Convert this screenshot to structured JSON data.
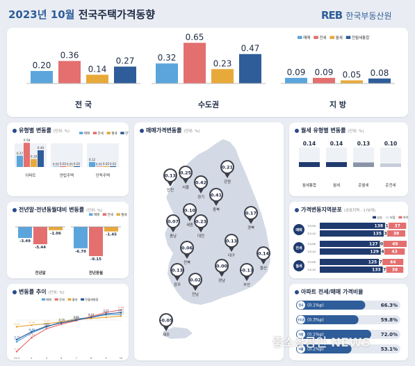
{
  "header": {
    "title_year": "2023년 10월",
    "title_main": "전국주택가격동향",
    "logo_mark": "REB",
    "logo_text": "한국부동산원"
  },
  "colors": {
    "sale": "#5ba5dc",
    "jeonse": "#e46f6f",
    "monthly": "#e8a93b",
    "combined": "#2f5d99",
    "navy": "#1f3a6e"
  },
  "chart_data": [
    {
      "type": "bar",
      "id": "top-regions",
      "legend": [
        "매매",
        "전세",
        "월세",
        "전월세통합"
      ],
      "categories": [
        "전 국",
        "수도권",
        "지 방"
      ],
      "series": [
        {
          "name": "매매",
          "values": [
            0.2,
            0.32,
            0.09
          ]
        },
        {
          "name": "전세",
          "values": [
            0.36,
            0.65,
            0.09
          ]
        },
        {
          "name": "월세",
          "values": [
            0.14,
            0.23,
            0.05
          ]
        },
        {
          "name": "전월세통합",
          "values": [
            0.27,
            0.47,
            0.08
          ]
        }
      ]
    },
    {
      "type": "bar",
      "id": "by-type",
      "title": "유형별 변동률",
      "unit": "(단위: %)",
      "legend": [
        "매매",
        "전세",
        "월세",
        "전월세통합"
      ],
      "categories": [
        "아파트",
        "연립주택",
        "단독주택"
      ],
      "series": [
        {
          "name": "매매",
          "values": [
            0.27,
            0.01,
            0.12
          ]
        },
        {
          "name": "전세",
          "values": [
            0.58,
            0.02,
            0.01
          ]
        },
        {
          "name": "월세",
          "values": [
            0.19,
            0.01,
            0.02
          ]
        },
        {
          "name": "전월세통합",
          "values": [
            0.4,
            0.02,
            0.02
          ]
        }
      ]
    },
    {
      "type": "bar",
      "id": "cumulative",
      "title": "전년말·전년동월대비 변동률",
      "unit": "(단위: %)",
      "legend": [
        "매매",
        "전세",
        "월세"
      ],
      "categories": [
        "전년말",
        "전년동월"
      ],
      "series": [
        {
          "name": "매매",
          "values": [
            -3.49,
            -6.7
          ]
        },
        {
          "name": "전세",
          "values": [
            -5.44,
            -9.15
          ]
        },
        {
          "name": "월세",
          "values": [
            -1.06,
            -1.45
          ]
        }
      ]
    },
    {
      "type": "line",
      "id": "trend",
      "title": "변동률 추이",
      "unit": "(단위: %)",
      "legend": [
        "매매",
        "전세",
        "월세",
        "전월세통합"
      ],
      "x": [
        "23.3",
        "4",
        "5",
        "6",
        "7",
        "8",
        "9",
        "10"
      ],
      "series": [
        {
          "name": "매매",
          "values": [
            -0.78,
            -0.46,
            -0.25,
            -0.06,
            0.04,
            0.1,
            0.19,
            0.2
          ]
        },
        {
          "name": "전세",
          "values": [
            -1.13,
            -0.63,
            -0.31,
            -0.15,
            -0.02,
            0.13,
            0.28,
            0.36
          ]
        },
        {
          "name": "월세",
          "values": [
            -0.24,
            -0.18,
            -0.13,
            -0.06,
            0.02,
            0.06,
            0.1,
            0.14
          ]
        },
        {
          "name": "전월세통합",
          "values": [
            -0.7,
            -0.42,
            -0.22,
            -0.1,
            0.0,
            0.1,
            0.22,
            0.27
          ]
        }
      ],
      "ylim": [
        -1.3,
        0.5
      ]
    },
    {
      "type": "bar",
      "id": "monthly-type",
      "title": "월세 유형별 변동률",
      "unit": "(단위: %)",
      "categories": [
        "월세통합",
        "월세",
        "준월세",
        "준전세"
      ],
      "values": [
        0.14,
        0.14,
        0.13,
        0.1
      ]
    },
    {
      "type": "bar",
      "id": "distribution",
      "title": "가격변동지역분포",
      "unit": "(공표지역 : 178개)",
      "groups": [
        "매매",
        "전세",
        "월세"
      ],
      "periods": [
        "'23.09",
        "'23.10"
      ],
      "legend": [
        "상승",
        "보합",
        "하락"
      ],
      "rows": [
        {
          "group": "매매",
          "period": "'23.09",
          "up": 138,
          "flat": 1,
          "down": 37
        },
        {
          "group": "매매",
          "period": "'23.10",
          "up": 135,
          "flat": 3,
          "down": 38
        },
        {
          "group": "전세",
          "period": "'23.09",
          "up": 127,
          "flat": 0,
          "down": 49
        },
        {
          "group": "전세",
          "period": "'23.10",
          "up": 129,
          "flat": 4,
          "down": 43
        },
        {
          "group": "월세",
          "period": "'23.09",
          "up": 125,
          "flat": 7,
          "down": 44
        },
        {
          "group": "월세",
          "period": "'23.10",
          "up": 133,
          "flat": 7,
          "down": 36
        }
      ]
    },
    {
      "type": "bar",
      "id": "jeonse-ratio",
      "title": "아파트 전세/매매 가격비율",
      "rows": [
        {
          "label": "전국",
          "change": "(0.1%p)",
          "value": 66.3
        },
        {
          "label": "수도권",
          "change": "(0.3%p)",
          "value": 59.8
        },
        {
          "label": "지방",
          "change": "(0.1%p)",
          "value": 72.0
        },
        {
          "label": "서울",
          "change": "(0.2%p)",
          "value": 53.1
        }
      ]
    },
    {
      "type": "table",
      "id": "map",
      "title": "매매가격변동률",
      "unit": "(단위: %)",
      "pins": [
        {
          "name": "인천",
          "value": "0.13"
        },
        {
          "name": "서울",
          "value": "0.25"
        },
        {
          "name": "경기",
          "value": "0.42"
        },
        {
          "name": "강원",
          "value": "0.21"
        },
        {
          "name": "충북",
          "value": "0.41"
        },
        {
          "name": "세종",
          "value": "0.10"
        },
        {
          "name": "충남",
          "value": "0.07"
        },
        {
          "name": "대전",
          "value": "0.23"
        },
        {
          "name": "경북",
          "value": "0.17"
        },
        {
          "name": "전북",
          "value": "0.06"
        },
        {
          "name": "대구",
          "value": "0.13"
        },
        {
          "name": "울산",
          "value": "0.14"
        },
        {
          "name": "광주",
          "value": "0.13"
        },
        {
          "name": "전남",
          "value": "0.02"
        },
        {
          "name": "경남",
          "value": "0.00"
        },
        {
          "name": "부산",
          "value": "-0.13"
        },
        {
          "name": "제주",
          "value": "-0.05"
        }
      ]
    }
  ],
  "watermark": "중소상공인 NEWS"
}
